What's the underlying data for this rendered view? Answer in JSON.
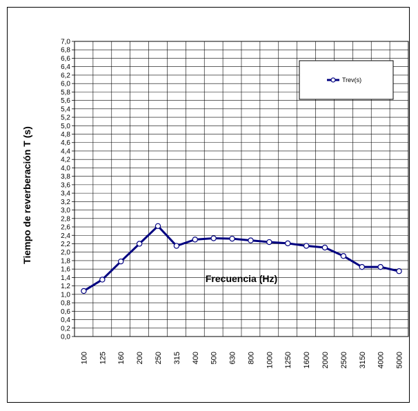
{
  "chart_data": {
    "type": "line",
    "title": "",
    "xlabel": "Frecuencia (Hz)",
    "ylabel": "Tiempo de reverberación T (s)",
    "ylim": [
      0,
      7
    ],
    "y_tick_step": 0.2,
    "grid": true,
    "legend_position": "top-right",
    "categories": [
      "100",
      "125",
      "160",
      "200",
      "250",
      "315",
      "400",
      "500",
      "630",
      "800",
      "1000",
      "1250",
      "1600",
      "2000",
      "2500",
      "3150",
      "4000",
      "5000"
    ],
    "series": [
      {
        "name": "Trev(s)",
        "color": "#000080",
        "marker": "circle-open",
        "values": [
          1.08,
          1.35,
          1.78,
          2.2,
          2.62,
          2.15,
          2.3,
          2.33,
          2.32,
          2.28,
          2.24,
          2.21,
          2.15,
          2.11,
          1.91,
          1.65,
          1.65,
          1.55
        ]
      }
    ]
  }
}
